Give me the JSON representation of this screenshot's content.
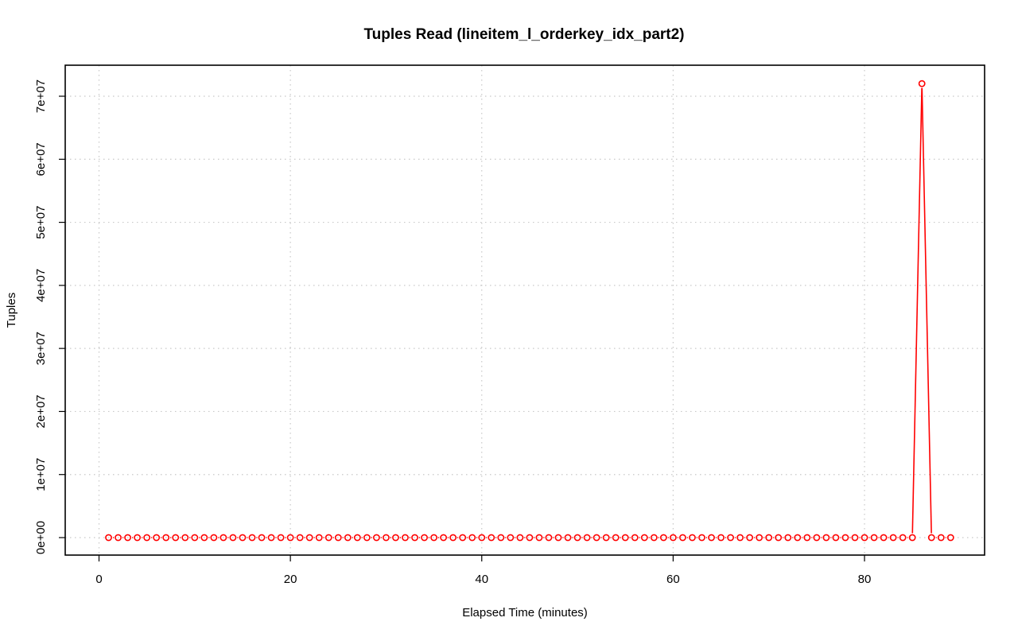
{
  "chart_data": {
    "type": "line",
    "title": "Tuples Read (lineitem_l_orderkey_idx_part2)",
    "xlabel": "Elapsed Time (minutes)",
    "ylabel": "Tuples",
    "xlim": [
      0,
      92
    ],
    "ylim": [
      0,
      72000000
    ],
    "x_ticks": [
      0,
      20,
      40,
      60,
      80
    ],
    "y_ticks": [
      0,
      10000000,
      20000000,
      30000000,
      40000000,
      50000000,
      60000000,
      70000000
    ],
    "x_tick_labels": [
      "0",
      "20",
      "40",
      "60",
      "80"
    ],
    "y_tick_labels": [
      "0e+00",
      "1e+07",
      "2e+07",
      "3e+07",
      "4e+07",
      "5e+07",
      "6e+07",
      "7e+07"
    ],
    "grid": true,
    "series": [
      {
        "color": "#ff0000",
        "x": [
          1,
          2,
          3,
          4,
          5,
          6,
          7,
          8,
          9,
          10,
          11,
          12,
          13,
          14,
          15,
          16,
          17,
          18,
          19,
          20,
          21,
          22,
          23,
          24,
          25,
          26,
          27,
          28,
          29,
          30,
          31,
          32,
          33,
          34,
          35,
          36,
          37,
          38,
          39,
          40,
          41,
          42,
          43,
          44,
          45,
          46,
          47,
          48,
          49,
          50,
          51,
          52,
          53,
          54,
          55,
          56,
          57,
          58,
          59,
          60,
          61,
          62,
          63,
          64,
          65,
          66,
          67,
          68,
          69,
          70,
          71,
          72,
          73,
          74,
          75,
          76,
          77,
          78,
          79,
          80,
          81,
          82,
          83,
          84,
          85,
          86,
          87,
          88,
          89
        ],
        "y": [
          0,
          0,
          0,
          0,
          0,
          0,
          0,
          0,
          0,
          0,
          0,
          0,
          0,
          0,
          0,
          0,
          0,
          0,
          0,
          0,
          0,
          0,
          0,
          0,
          0,
          0,
          0,
          0,
          0,
          0,
          0,
          0,
          0,
          0,
          0,
          0,
          0,
          0,
          0,
          0,
          0,
          0,
          0,
          0,
          0,
          0,
          0,
          0,
          0,
          0,
          0,
          0,
          0,
          0,
          0,
          0,
          0,
          0,
          0,
          0,
          0,
          0,
          0,
          0,
          0,
          0,
          0,
          0,
          0,
          0,
          0,
          0,
          0,
          0,
          0,
          0,
          0,
          0,
          0,
          0,
          0,
          0,
          0,
          0,
          0,
          72000000,
          0,
          0,
          0
        ]
      }
    ]
  }
}
